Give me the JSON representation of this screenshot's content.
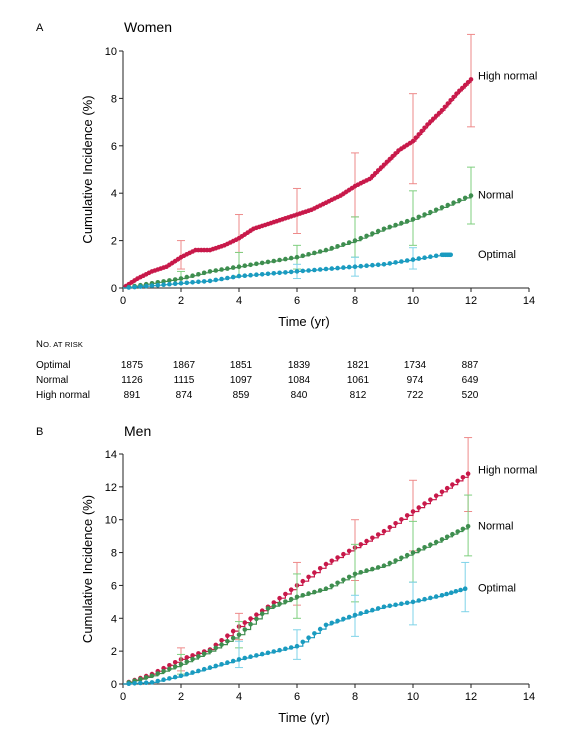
{
  "chart_data": [
    {
      "panel": "A",
      "title": "Women",
      "type": "line",
      "xlabel": "Time (yr)",
      "ylabel": "Cumulative Incidence (%)",
      "xlim": [
        0,
        14
      ],
      "ylim": [
        0,
        10
      ],
      "xticks": [
        0,
        2,
        4,
        6,
        8,
        10,
        12,
        14
      ],
      "yticks": [
        0,
        2,
        4,
        6,
        8,
        10
      ],
      "series": [
        {
          "name": "High normal",
          "color": "#c8194a",
          "err_color": "#ee8a8a",
          "x": [
            0,
            0.5,
            1,
            1.5,
            2,
            2.5,
            3,
            3.5,
            4,
            4.5,
            5,
            5.5,
            6,
            6.5,
            7,
            7.5,
            8,
            8.5,
            9,
            9.5,
            10,
            10.5,
            11,
            11.5,
            12
          ],
          "y": [
            0,
            0.4,
            0.7,
            0.9,
            1.3,
            1.6,
            1.6,
            1.8,
            2.1,
            2.5,
            2.7,
            2.9,
            3.1,
            3.3,
            3.6,
            3.9,
            4.3,
            4.6,
            5.2,
            5.8,
            6.2,
            6.9,
            7.5,
            8.2,
            8.8
          ],
          "errorbars": [
            {
              "x": 2,
              "lo": 0.8,
              "hi": 2.0
            },
            {
              "x": 4,
              "lo": 1.5,
              "hi": 3.1
            },
            {
              "x": 6,
              "lo": 2.3,
              "hi": 4.2
            },
            {
              "x": 8,
              "lo": 3.0,
              "hi": 5.7
            },
            {
              "x": 10,
              "lo": 4.4,
              "hi": 8.2
            },
            {
              "x": 12,
              "lo": 6.8,
              "hi": 10.7
            }
          ]
        },
        {
          "name": "Normal",
          "color": "#3e8e4f",
          "err_color": "#7fcf7f",
          "x": [
            0,
            1,
            2,
            3,
            4,
            5,
            6,
            7,
            8,
            9,
            10,
            11,
            12
          ],
          "y": [
            0,
            0.2,
            0.4,
            0.7,
            0.9,
            1.1,
            1.3,
            1.6,
            2.0,
            2.5,
            2.9,
            3.4,
            3.9
          ],
          "errorbars": [
            {
              "x": 2,
              "lo": 0.2,
              "hi": 0.7
            },
            {
              "x": 4,
              "lo": 0.5,
              "hi": 1.5
            },
            {
              "x": 6,
              "lo": 0.8,
              "hi": 1.8
            },
            {
              "x": 8,
              "lo": 1.3,
              "hi": 3.0
            },
            {
              "x": 10,
              "lo": 1.8,
              "hi": 4.1
            },
            {
              "x": 12,
              "lo": 2.7,
              "hi": 5.1
            }
          ]
        },
        {
          "name": "Optimal",
          "color": "#1a9bc0",
          "err_color": "#7fd3e8",
          "x": [
            0,
            1,
            2,
            3,
            4,
            5,
            6,
            7,
            8,
            9,
            10,
            11,
            11.3
          ],
          "y": [
            0,
            0.1,
            0.2,
            0.3,
            0.5,
            0.6,
            0.7,
            0.8,
            0.9,
            1.0,
            1.2,
            1.4,
            1.4
          ],
          "errorbars": [
            {
              "x": 6,
              "lo": 0.4,
              "hi": 1.0
            },
            {
              "x": 8,
              "lo": 0.5,
              "hi": 1.3
            },
            {
              "x": 10,
              "lo": 0.8,
              "hi": 1.7
            }
          ]
        }
      ]
    },
    {
      "panel": "B",
      "title": "Men",
      "type": "line",
      "xlabel": "Time (yr)",
      "ylabel": "Cumulative Incidence (%)",
      "xlim": [
        0,
        14
      ],
      "ylim": [
        0,
        14
      ],
      "xticks": [
        0,
        2,
        4,
        6,
        8,
        10,
        12,
        14
      ],
      "yticks": [
        0,
        2,
        4,
        6,
        8,
        10,
        12,
        14
      ],
      "series": [
        {
          "name": "High normal",
          "color": "#c8194a",
          "err_color": "#ee8a8a",
          "x": [
            0,
            1,
            2,
            3,
            4,
            5,
            6,
            7,
            8,
            9,
            10,
            11,
            11.9
          ],
          "y": [
            0,
            0.6,
            1.5,
            2.1,
            3.5,
            4.7,
            6.0,
            7.3,
            8.3,
            9.3,
            10.5,
            11.7,
            12.8
          ],
          "errorbars": [
            {
              "x": 2,
              "lo": 0.8,
              "hi": 2.2
            },
            {
              "x": 4,
              "lo": 2.7,
              "hi": 4.3
            },
            {
              "x": 6,
              "lo": 4.8,
              "hi": 7.4
            },
            {
              "x": 8,
              "lo": 6.3,
              "hi": 10.0
            },
            {
              "x": 10,
              "lo": 8.1,
              "hi": 12.4
            },
            {
              "x": 11.9,
              "lo": 10.5,
              "hi": 15.0
            }
          ]
        },
        {
          "name": "Normal",
          "color": "#3e8e4f",
          "err_color": "#7fcf7f",
          "x": [
            0,
            1,
            2,
            3,
            4,
            5,
            6,
            7,
            8,
            9,
            10,
            11,
            11.9
          ],
          "y": [
            0,
            0.5,
            1.2,
            2.0,
            3.0,
            4.6,
            5.3,
            5.8,
            6.7,
            7.2,
            8.0,
            8.8,
            9.6
          ],
          "errorbars": [
            {
              "x": 2,
              "lo": 0.6,
              "hi": 1.8
            },
            {
              "x": 4,
              "lo": 2.2,
              "hi": 3.8
            },
            {
              "x": 6,
              "lo": 4.0,
              "hi": 6.7
            },
            {
              "x": 8,
              "lo": 5.0,
              "hi": 8.5
            },
            {
              "x": 10,
              "lo": 6.2,
              "hi": 9.9
            },
            {
              "x": 11.9,
              "lo": 7.8,
              "hi": 11.5
            }
          ]
        },
        {
          "name": "Optimal",
          "color": "#1a9bc0",
          "err_color": "#7fd3e8",
          "x": [
            0,
            1,
            2,
            3,
            4,
            5,
            6,
            7,
            8,
            9,
            10,
            11,
            11.8
          ],
          "y": [
            0,
            0.1,
            0.5,
            1.0,
            1.5,
            1.9,
            2.3,
            3.6,
            4.2,
            4.7,
            5.0,
            5.4,
            5.8
          ],
          "errorbars": [
            {
              "x": 4,
              "lo": 1.0,
              "hi": 2.6
            },
            {
              "x": 6,
              "lo": 1.5,
              "hi": 3.3
            },
            {
              "x": 8,
              "lo": 2.9,
              "hi": 5.4
            },
            {
              "x": 10,
              "lo": 3.6,
              "hi": 6.2
            },
            {
              "x": 11.8,
              "lo": 4.4,
              "hi": 7.4
            }
          ]
        }
      ]
    }
  ],
  "risk_table": {
    "heading_first": "N",
    "heading_rest": "o. at Risk",
    "rows": [
      {
        "label": "Optimal",
        "values": [
          "1875",
          "1867",
          "1851",
          "1839",
          "1821",
          "1734",
          "887"
        ]
      },
      {
        "label": "Normal",
        "values": [
          "1126",
          "1115",
          "1097",
          "1084",
          "1061",
          "974",
          "649"
        ]
      },
      {
        "label": "High normal",
        "values": [
          "891",
          "874",
          "859",
          "840",
          "812",
          "722",
          "520"
        ]
      }
    ]
  }
}
